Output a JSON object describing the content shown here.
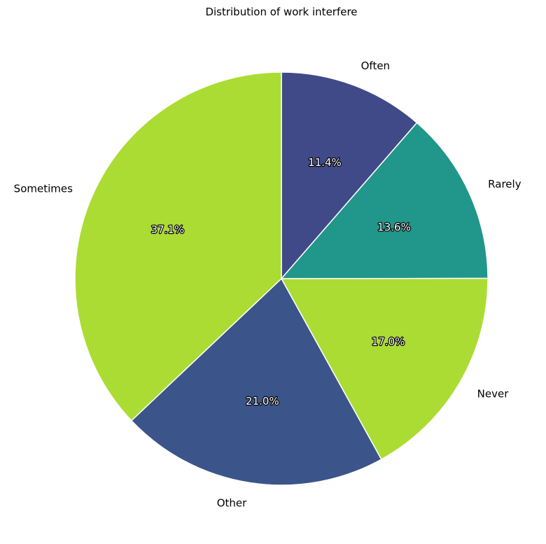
{
  "chart_data": {
    "type": "pie",
    "title": "Distribution of work interfere",
    "slices": [
      {
        "label": "Often",
        "value": 11.4,
        "pct_label": "11.4%",
        "color": "#404a88"
      },
      {
        "label": "Rarely",
        "value": 13.6,
        "pct_label": "13.6%",
        "color": "#21968b"
      },
      {
        "label": "Never",
        "value": 17.0,
        "pct_label": "17.0%",
        "color": "#abdc33"
      },
      {
        "label": "Other",
        "value": 21.0,
        "pct_label": "21.0%",
        "color": "#3b558a"
      },
      {
        "label": "Sometimes",
        "value": 37.1,
        "pct_label": "37.1%",
        "color": "#abdc33"
      }
    ],
    "start_angle": "top",
    "direction": "clockwise",
    "legend": "none",
    "grid": false
  }
}
